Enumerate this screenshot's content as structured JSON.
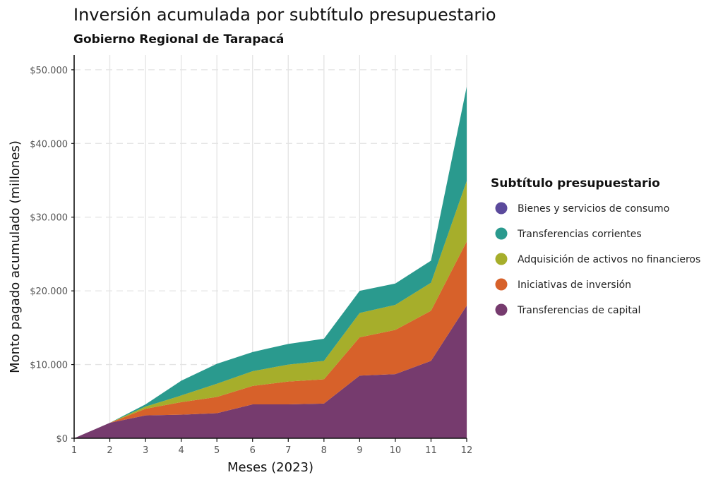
{
  "chart_data": {
    "type": "area",
    "stacked": true,
    "title": "Inversión acumulada por subtítulo presupuestario",
    "subtitle": "Gobierno Regional de Tarapacá",
    "xlabel": "Meses (2023)",
    "ylabel": "Monto pagado acumulado (millones)",
    "x": [
      1,
      2,
      3,
      4,
      5,
      6,
      7,
      8,
      9,
      10,
      11,
      12
    ],
    "xlim": [
      1,
      12
    ],
    "ylim": [
      0,
      52000
    ],
    "yticks": [
      0,
      10000,
      20000,
      30000,
      40000,
      50000
    ],
    "ytick_labels": [
      "$0",
      "$10.000",
      "$20.000",
      "$30.000",
      "$40.000",
      "$50.000"
    ],
    "xtick_labels": [
      "1",
      "2",
      "3",
      "4",
      "5",
      "6",
      "7",
      "8",
      "9",
      "10",
      "11",
      "12"
    ],
    "grid": true,
    "legend_title": "Subtítulo presupuestario",
    "legend_position": "right",
    "series": [
      {
        "name": "Transferencias de capital",
        "color": "#763b6e",
        "values": [
          0,
          2100,
          3100,
          3200,
          3400,
          4600,
          4600,
          4700,
          8500,
          8700,
          10500,
          18000
        ]
      },
      {
        "name": "Iniciativas de inversión",
        "color": "#d7612a",
        "values": [
          0,
          0,
          900,
          1700,
          2200,
          2500,
          3100,
          3300,
          5200,
          6000,
          6800,
          8700
        ]
      },
      {
        "name": "Adquisición de activos no financieros",
        "color": "#a6ae2b",
        "values": [
          0,
          0,
          300,
          900,
          1800,
          2000,
          2300,
          2500,
          3300,
          3400,
          3800,
          8200
        ]
      },
      {
        "name": "Transferencias corrientes",
        "color": "#2a9a8e",
        "values": [
          0,
          0,
          300,
          2000,
          2700,
          2600,
          2800,
          3000,
          3000,
          2900,
          3000,
          12800
        ]
      },
      {
        "name": "Bienes y servicios de consumo",
        "color": "#5b4a9c",
        "values": [
          0,
          0,
          0,
          0,
          0,
          0,
          0,
          0,
          0,
          0,
          0,
          0
        ]
      }
    ],
    "legend_order": [
      "Bienes y servicios de consumo",
      "Transferencias corrientes",
      "Adquisición de activos no financieros",
      "Iniciativas de inversión",
      "Transferencias de capital"
    ]
  }
}
